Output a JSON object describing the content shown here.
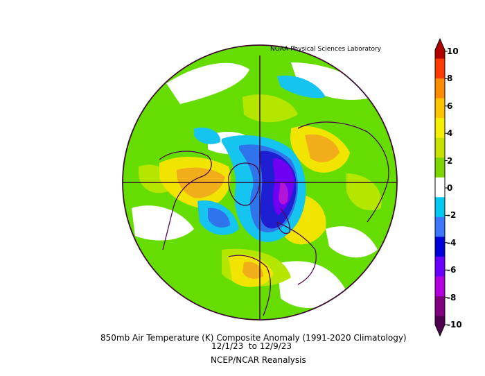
{
  "credit": "NOAA Physical Sciences Laboratory",
  "caption": {
    "line1": "850mb Air Temperature (K) Composite Anomaly (1991-2020 Climatology)",
    "line2": "12/1/23  to 12/9/23",
    "line3": "NCEP/NCAR Reanalysis"
  },
  "colorbar": {
    "ticks": [
      "10",
      "8",
      "6",
      "4",
      "2",
      "0",
      "-2",
      "-4",
      "-6",
      "-8",
      "-10"
    ],
    "colors": [
      "#b00000",
      "#ff3a00",
      "#ff8c00",
      "#ffc400",
      "#f6f000",
      "#c8e000",
      "#7ed600",
      "#ffffff",
      "#00c8f0",
      "#3c78ff",
      "#0000d8",
      "#6a00ff",
      "#b000e0",
      "#800080",
      "#500050"
    ]
  },
  "palette": {
    "green": "#66dd00",
    "lightgreen": "#b4e600",
    "yellow": "#f0e400",
    "orange": "#f2ad1a",
    "red": "#ee3b10",
    "cyan": "#16c4f0",
    "blue": "#2f74ea",
    "darkblue": "#1e1ed2",
    "purple": "#6f00f2",
    "magenta": "#b414d6",
    "coast": "#4a0a4a"
  }
}
